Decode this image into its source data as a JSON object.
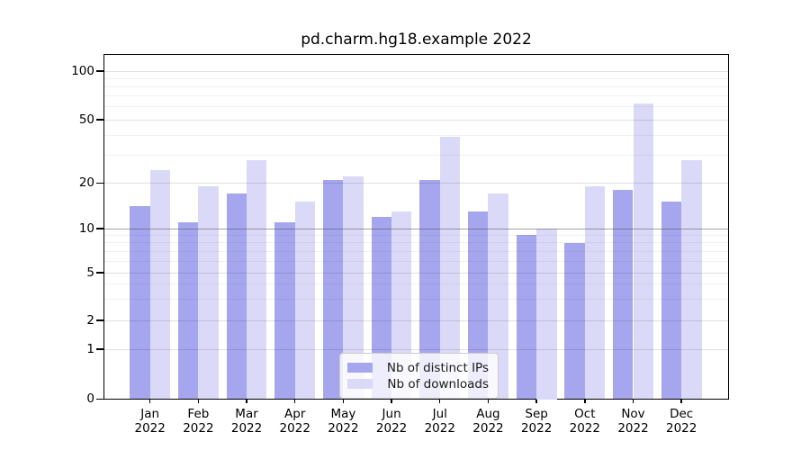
{
  "chart_data": {
    "type": "bar",
    "title": "pd.charm.hg18.example 2022",
    "categories": [
      "Jan",
      "Feb",
      "Mar",
      "Apr",
      "May",
      "Jun",
      "Jul",
      "Aug",
      "Sep",
      "Oct",
      "Nov",
      "Dec"
    ],
    "year_label": "2022",
    "series": [
      {
        "name": "Nb of distinct IPs",
        "color": "#a6a6ef",
        "values": [
          14,
          11,
          17,
          11,
          21,
          12,
          21,
          13,
          9,
          8,
          18,
          15
        ]
      },
      {
        "name": "Nb of downloads",
        "color": "#dadaf8",
        "values": [
          24,
          19,
          28,
          15,
          22,
          13,
          39,
          17,
          10,
          19,
          63,
          28
        ]
      }
    ],
    "xlabel": "",
    "ylabel": "",
    "y_axis": {
      "scale": "log-like",
      "major_ticks": [
        0,
        1,
        2,
        5,
        10,
        20,
        50,
        100
      ],
      "minor_gridlines": [
        3,
        4,
        6,
        7,
        8,
        9,
        30,
        40,
        60,
        70,
        80,
        90
      ],
      "reference_line": 10,
      "ylim": [
        0,
        130
      ]
    },
    "grid": "horizontal",
    "legend_position": "lower center"
  }
}
